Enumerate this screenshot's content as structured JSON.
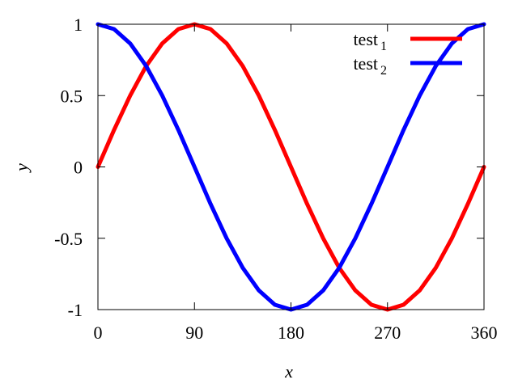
{
  "chart_data": {
    "type": "line",
    "xlabel": "x",
    "ylabel": "y",
    "xlim": [
      0,
      360
    ],
    "ylim": [
      -1,
      1
    ],
    "xticks": [
      0,
      90,
      180,
      270,
      360
    ],
    "xtick_labels": [
      "0",
      "90",
      "180",
      "270",
      "360"
    ],
    "yticks": [
      1,
      0.5,
      0,
      -0.5,
      -1
    ],
    "ytick_labels": [
      "1",
      "0.5",
      "0",
      "-0.5",
      "-1"
    ],
    "grid": false,
    "legend_position": "top-right",
    "x": [
      0,
      15,
      30,
      45,
      60,
      75,
      90,
      105,
      120,
      135,
      150,
      165,
      180,
      195,
      210,
      225,
      240,
      255,
      270,
      285,
      300,
      315,
      330,
      345,
      360
    ],
    "series": [
      {
        "name": "test",
        "subscript": "1",
        "color": "#ff0000",
        "values": [
          0,
          0.259,
          0.5,
          0.707,
          0.866,
          0.966,
          1,
          0.966,
          0.866,
          0.707,
          0.5,
          0.259,
          0,
          -0.259,
          -0.5,
          -0.707,
          -0.866,
          -0.966,
          -1,
          -0.966,
          -0.866,
          -0.707,
          -0.5,
          -0.259,
          0
        ]
      },
      {
        "name": "test",
        "subscript": "2",
        "color": "#0000ff",
        "values": [
          1,
          0.966,
          0.866,
          0.707,
          0.5,
          0.259,
          0,
          -0.259,
          -0.5,
          -0.707,
          -0.866,
          -0.966,
          -1,
          -0.966,
          -0.866,
          -0.707,
          -0.5,
          -0.259,
          0,
          0.259,
          0.5,
          0.707,
          0.866,
          0.966,
          1
        ]
      }
    ]
  }
}
